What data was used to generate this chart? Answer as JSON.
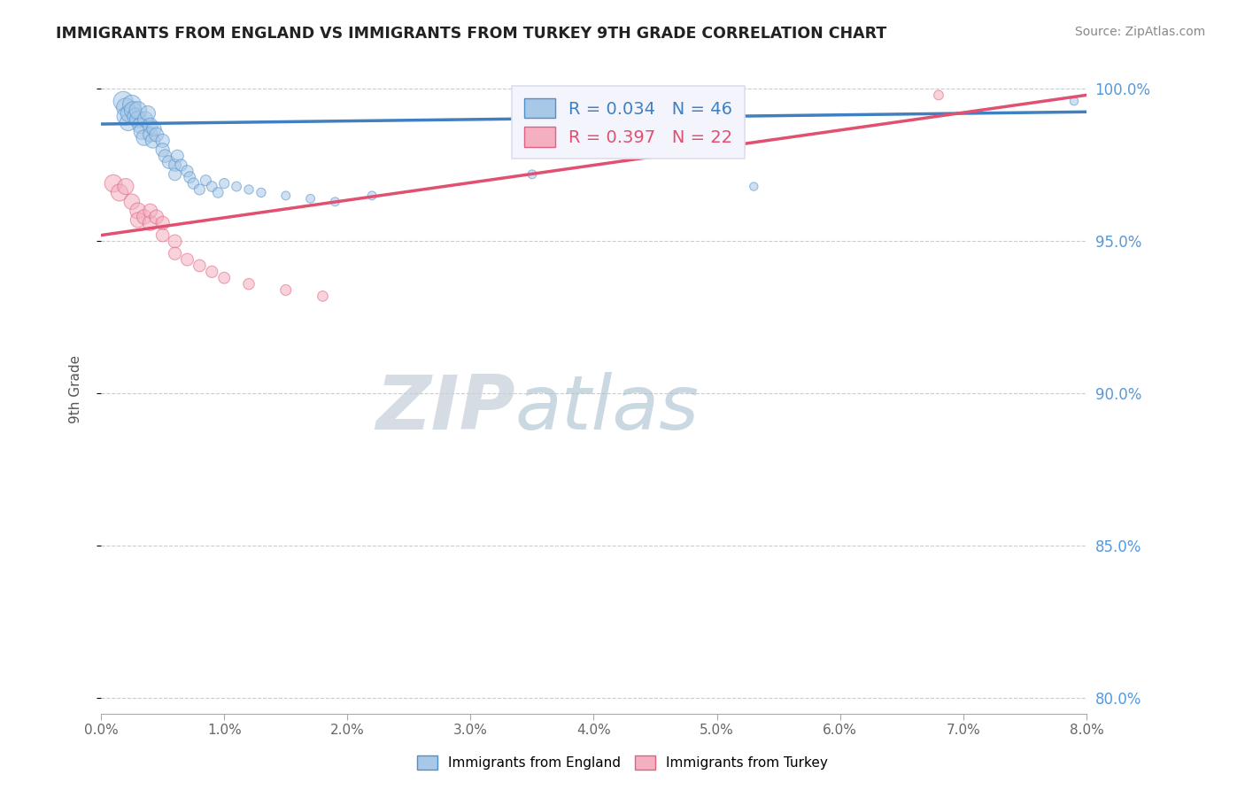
{
  "title": "IMMIGRANTS FROM ENGLAND VS IMMIGRANTS FROM TURKEY 9TH GRADE CORRELATION CHART",
  "source": "Source: ZipAtlas.com",
  "ylabel": "9th Grade",
  "xlim": [
    0.0,
    0.08
  ],
  "ylim": [
    0.795,
    1.008
  ],
  "xticks": [
    0.0,
    0.01,
    0.02,
    0.03,
    0.04,
    0.05,
    0.06,
    0.07,
    0.08
  ],
  "xticklabels": [
    "0.0%",
    "1.0%",
    "2.0%",
    "3.0%",
    "4.0%",
    "5.0%",
    "6.0%",
    "7.0%",
    "8.0%"
  ],
  "yticks": [
    0.8,
    0.85,
    0.9,
    0.95,
    1.0
  ],
  "yticklabels": [
    "80.0%",
    "85.0%",
    "90.0%",
    "95.0%",
    "100.0%"
  ],
  "england_color": "#a8c8e8",
  "turkey_color": "#f4b0c0",
  "england_edge_color": "#5090c8",
  "turkey_edge_color": "#e06080",
  "england_line_color": "#4080c0",
  "turkey_line_color": "#e05070",
  "r_england": 0.034,
  "n_england": 46,
  "r_turkey": 0.397,
  "n_turkey": 22,
  "watermark_zip": "ZIP",
  "watermark_atlas": "atlas",
  "watermark_color_zip": "#d0d8e8",
  "watermark_color_atlas": "#b8c8d8",
  "grid_color": "#cccccc",
  "england_x": [
    0.0018,
    0.002,
    0.002,
    0.0022,
    0.0023,
    0.0025,
    0.0026,
    0.0028,
    0.003,
    0.003,
    0.0032,
    0.0033,
    0.0035,
    0.0036,
    0.0038,
    0.004,
    0.004,
    0.0042,
    0.0043,
    0.0045,
    0.005,
    0.005,
    0.0052,
    0.0055,
    0.006,
    0.006,
    0.0062,
    0.0065,
    0.007,
    0.0072,
    0.0075,
    0.008,
    0.0085,
    0.009,
    0.0095,
    0.01,
    0.011,
    0.012,
    0.013,
    0.015,
    0.017,
    0.019,
    0.022,
    0.035,
    0.053,
    0.079
  ],
  "england_y": [
    0.996,
    0.994,
    0.991,
    0.989,
    0.992,
    0.995,
    0.993,
    0.991,
    0.99,
    0.993,
    0.988,
    0.986,
    0.984,
    0.99,
    0.992,
    0.988,
    0.985,
    0.983,
    0.987,
    0.985,
    0.983,
    0.98,
    0.978,
    0.976,
    0.975,
    0.972,
    0.978,
    0.975,
    0.973,
    0.971,
    0.969,
    0.967,
    0.97,
    0.968,
    0.966,
    0.969,
    0.968,
    0.967,
    0.966,
    0.965,
    0.964,
    0.963,
    0.965,
    0.972,
    0.968,
    0.996
  ],
  "england_sizes": [
    250,
    220,
    200,
    180,
    200,
    220,
    200,
    180,
    180,
    200,
    160,
    160,
    160,
    160,
    150,
    150,
    140,
    140,
    140,
    130,
    120,
    120,
    110,
    110,
    100,
    100,
    100,
    90,
    90,
    85,
    80,
    75,
    75,
    70,
    70,
    65,
    60,
    55,
    55,
    50,
    50,
    50,
    50,
    50,
    45,
    45
  ],
  "turkey_x": [
    0.001,
    0.0015,
    0.002,
    0.0025,
    0.003,
    0.003,
    0.0035,
    0.004,
    0.004,
    0.0045,
    0.005,
    0.005,
    0.006,
    0.006,
    0.007,
    0.008,
    0.009,
    0.01,
    0.012,
    0.015,
    0.018,
    0.068
  ],
  "turkey_y": [
    0.969,
    0.966,
    0.968,
    0.963,
    0.96,
    0.957,
    0.958,
    0.956,
    0.96,
    0.958,
    0.956,
    0.952,
    0.95,
    0.946,
    0.944,
    0.942,
    0.94,
    0.938,
    0.936,
    0.934,
    0.932,
    0.998
  ],
  "turkey_sizes": [
    200,
    190,
    170,
    160,
    170,
    150,
    140,
    150,
    130,
    130,
    120,
    110,
    115,
    105,
    100,
    95,
    90,
    85,
    80,
    75,
    70,
    60
  ],
  "eng_trend_x": [
    0.0,
    0.08
  ],
  "eng_trend_y": [
    0.9885,
    0.9925
  ],
  "tur_trend_x": [
    0.0,
    0.08
  ],
  "tur_trend_y": [
    0.952,
    0.998
  ]
}
